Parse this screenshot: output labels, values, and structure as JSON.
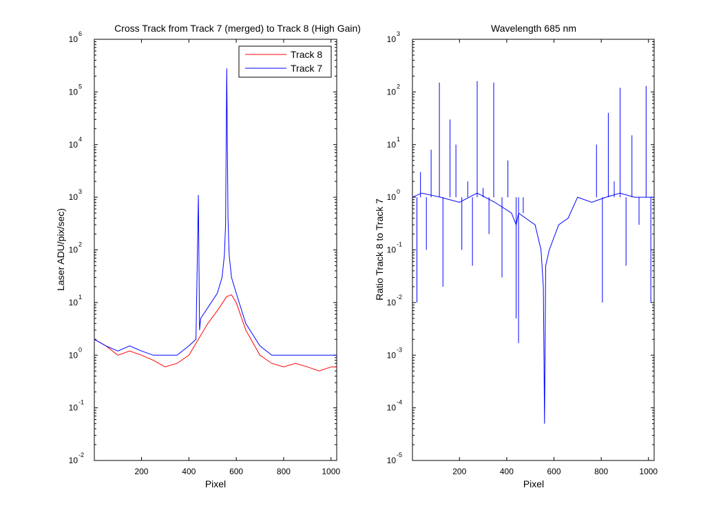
{
  "chart_data": [
    {
      "type": "line",
      "title": "Cross Track from Track 7 (merged) to Track 8 (High Gain)",
      "xlabel": "Pixel",
      "ylabel": "Laser ADU/pix/sec)",
      "xlim": [
        1,
        1024
      ],
      "ylim": [
        0.01,
        1000000
      ],
      "yscale": "log",
      "xticks": [
        200,
        400,
        600,
        800,
        1000
      ],
      "ytick_exponents": [
        -2,
        -1,
        0,
        1,
        2,
        3,
        4,
        5,
        6
      ],
      "legend": {
        "location": "top-right",
        "entries": [
          "Track 8",
          "Track 7"
        ]
      },
      "series": [
        {
          "name": "Track 8",
          "color": "#ff0000",
          "x": [
            1,
            50,
            100,
            150,
            200,
            250,
            300,
            350,
            400,
            440,
            480,
            520,
            560,
            580,
            600,
            640,
            700,
            750,
            800,
            850,
            900,
            950,
            1000,
            1024
          ],
          "y": [
            2,
            1.5,
            1,
            1.2,
            1,
            0.8,
            0.6,
            0.7,
            1,
            2,
            4,
            7,
            13,
            14,
            10,
            3,
            1,
            0.7,
            0.6,
            0.7,
            0.6,
            0.5,
            0.6,
            0.6
          ]
        },
        {
          "name": "Track 7",
          "color": "#0000ff",
          "x": [
            1,
            50,
            100,
            150,
            200,
            250,
            300,
            350,
            400,
            430,
            440,
            445,
            450,
            480,
            520,
            540,
            550,
            555,
            560,
            565,
            570,
            580,
            600,
            640,
            700,
            750,
            800,
            850,
            900,
            950,
            1000,
            1024
          ],
          "y": [
            2,
            1.5,
            1.2,
            1.5,
            1.2,
            1,
            1,
            1,
            1.5,
            2,
            1100,
            3,
            5,
            8,
            15,
            30,
            80,
            300,
            280000,
            400,
            80,
            30,
            15,
            4,
            1.5,
            1,
            1,
            1,
            1,
            1,
            1,
            1
          ]
        }
      ]
    },
    {
      "type": "line",
      "title": "Wavelength 685 nm",
      "xlabel": "Pixel",
      "ylabel": "Ratio Track 8 to Track 7",
      "xlim": [
        1,
        1024
      ],
      "ylim": [
        1e-05,
        1000
      ],
      "yscale": "log",
      "xticks": [
        200,
        400,
        600,
        800,
        1000
      ],
      "ytick_exponents": [
        -5,
        -4,
        -3,
        -2,
        -1,
        0,
        1,
        2,
        3
      ],
      "series": [
        {
          "color": "#0000ff",
          "x": [
            1,
            40,
            120,
            200,
            275,
            350,
            420,
            440,
            450,
            480,
            520,
            545,
            555,
            560,
            565,
            580,
            620,
            660,
            700,
            760,
            820,
            880,
            940,
            990,
            1024
          ],
          "y": [
            1,
            1.2,
            1,
            0.8,
            1.2,
            0.8,
            0.5,
            0.3,
            0.5,
            0.4,
            0.3,
            0.1,
            0.02,
            5e-05,
            0.05,
            0.1,
            0.3,
            0.4,
            1,
            0.8,
            1,
            1.2,
            1,
            1,
            1
          ]
        }
      ],
      "spikes": {
        "x": [
          20,
          35,
          60,
          80,
          115,
          130,
          160,
          185,
          210,
          235,
          255,
          275,
          300,
          325,
          345,
          380,
          405,
          440,
          450,
          470,
          780,
          805,
          830,
          855,
          880,
          905,
          930,
          960,
          990,
          1010
        ],
        "y": [
          0.01,
          3,
          0.1,
          8,
          150,
          0.02,
          30,
          10,
          0.1,
          2,
          0.05,
          160,
          1.5,
          0.2,
          150,
          0.03,
          5,
          0.005,
          0.0017,
          0.5,
          10,
          0.01,
          40,
          2,
          120,
          0.05,
          15,
          0.3,
          130,
          0.01
        ]
      }
    }
  ],
  "legend_labels": {
    "track8": "Track 8",
    "track7": "Track 7"
  }
}
